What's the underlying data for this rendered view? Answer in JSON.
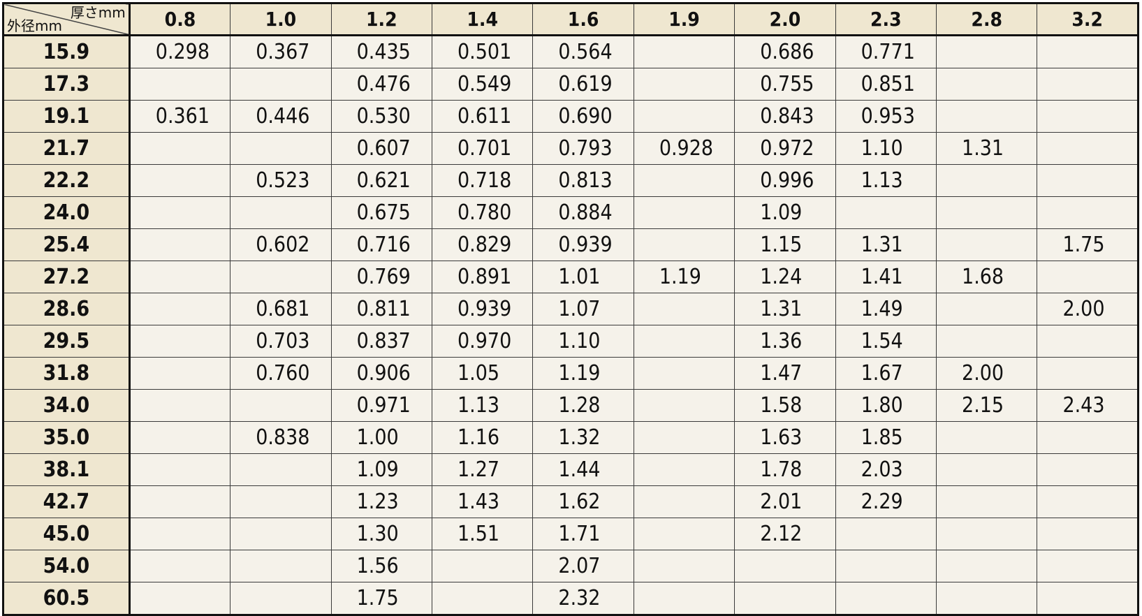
{
  "table": {
    "corner": {
      "thickness_label": "厚さmm",
      "diameter_label": "外径mm"
    },
    "columns": [
      "0.8",
      "1.0",
      "1.2",
      "1.4",
      "1.6",
      "1.9",
      "2.0",
      "2.3",
      "2.8",
      "3.2"
    ],
    "rows": [
      {
        "od": "15.9",
        "cells": [
          "0.298",
          "0.367",
          "0.435",
          "0.501",
          "0.564",
          "",
          "0.686",
          "0.771",
          "",
          ""
        ]
      },
      {
        "od": "17.3",
        "cells": [
          "",
          "",
          "0.476",
          "0.549",
          "0.619",
          "",
          "0.755",
          "0.851",
          "",
          ""
        ]
      },
      {
        "od": "19.1",
        "cells": [
          "0.361",
          "0.446",
          "0.530",
          "0.611",
          "0.690",
          "",
          "0.843",
          "0.953",
          "",
          ""
        ]
      },
      {
        "od": "21.7",
        "cells": [
          "",
          "",
          "0.607",
          "0.701",
          "0.793",
          "0.928",
          "0.972",
          "1.10",
          "1.31",
          ""
        ]
      },
      {
        "od": "22.2",
        "cells": [
          "",
          "0.523",
          "0.621",
          "0.718",
          "0.813",
          "",
          "0.996",
          "1.13",
          "",
          ""
        ]
      },
      {
        "od": "24.0",
        "cells": [
          "",
          "",
          "0.675",
          "0.780",
          "0.884",
          "",
          "1.09",
          "",
          "",
          ""
        ]
      },
      {
        "od": "25.4",
        "cells": [
          "",
          "0.602",
          "0.716",
          "0.829",
          "0.939",
          "",
          "1.15",
          "1.31",
          "",
          "1.75"
        ]
      },
      {
        "od": "27.2",
        "cells": [
          "",
          "",
          "0.769",
          "0.891",
          "1.01",
          "1.19",
          "1.24",
          "1.41",
          "1.68",
          ""
        ]
      },
      {
        "od": "28.6",
        "cells": [
          "",
          "0.681",
          "0.811",
          "0.939",
          "1.07",
          "",
          "1.31",
          "1.49",
          "",
          "2.00"
        ]
      },
      {
        "od": "29.5",
        "cells": [
          "",
          "0.703",
          "0.837",
          "0.970",
          "1.10",
          "",
          "1.36",
          "1.54",
          "",
          ""
        ]
      },
      {
        "od": "31.8",
        "cells": [
          "",
          "0.760",
          "0.906",
          "1.05",
          "1.19",
          "",
          "1.47",
          "1.67",
          "2.00",
          ""
        ]
      },
      {
        "od": "34.0",
        "cells": [
          "",
          "",
          "0.971",
          "1.13",
          "1.28",
          "",
          "1.58",
          "1.80",
          "2.15",
          "2.43"
        ]
      },
      {
        "od": "35.0",
        "cells": [
          "",
          "0.838",
          "1.00",
          "1.16",
          "1.32",
          "",
          "1.63",
          "1.85",
          "",
          ""
        ]
      },
      {
        "od": "38.1",
        "cells": [
          "",
          "",
          "1.09",
          "1.27",
          "1.44",
          "",
          "1.78",
          "2.03",
          "",
          ""
        ]
      },
      {
        "od": "42.7",
        "cells": [
          "",
          "",
          "1.23",
          "1.43",
          "1.62",
          "",
          "2.01",
          "2.29",
          "",
          ""
        ]
      },
      {
        "od": "45.0",
        "cells": [
          "",
          "",
          "1.30",
          "1.51",
          "1.71",
          "",
          "2.12",
          "",
          "",
          ""
        ]
      },
      {
        "od": "54.0",
        "cells": [
          "",
          "",
          "1.56",
          "",
          "2.07",
          "",
          "",
          "",
          "",
          ""
        ]
      },
      {
        "od": "60.5",
        "cells": [
          "",
          "",
          "1.75",
          "",
          "2.32",
          "",
          "",
          "",
          "",
          ""
        ]
      }
    ]
  },
  "colors": {
    "header_bg": "#efe7d0",
    "cell_bg": "#f5f2ea",
    "border": "#111111"
  }
}
